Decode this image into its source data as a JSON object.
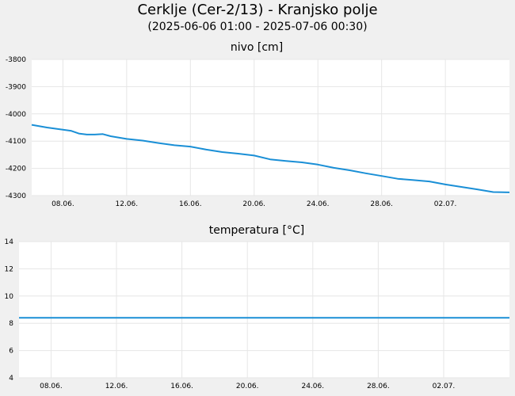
{
  "header": {
    "title": "Cerklje (Cer-2/13) - Kranjsko polje",
    "subtitle": "(2025-06-06 01:00 - 2025-07-06 00:30)"
  },
  "colors": {
    "line": "#1a8fd6",
    "plot_bg": "#ffffff",
    "grid": "#e6e6e6",
    "page_bg": "#f0f0f0"
  },
  "chart_data": [
    {
      "type": "line",
      "title": "nivo [cm]",
      "x_range": [
        "2025-06-06 01:00",
        "2025-07-06 00:30"
      ],
      "x_ticks": [
        "08.06.",
        "12.06.",
        "16.06.",
        "20.06.",
        "24.06.",
        "28.06.",
        "02.07."
      ],
      "ylim": [
        -4300,
        -3800
      ],
      "y_ticks": [
        "-3800",
        "-3900",
        "-4000",
        "-4100",
        "-4200",
        "-4300"
      ],
      "grid": true,
      "series": [
        {
          "x": [
            "2025-06-06 01:00",
            "2025-06-07 00:00",
            "2025-06-08 00:00",
            "2025-06-08 12:00",
            "2025-06-09 00:00",
            "2025-06-09 12:00",
            "2025-06-10 00:00",
            "2025-06-10 12:00",
            "2025-06-11 00:00",
            "2025-06-12 00:00",
            "2025-06-13 00:00",
            "2025-06-14 00:00",
            "2025-06-15 00:00",
            "2025-06-16 00:00",
            "2025-06-17 00:00",
            "2025-06-18 00:00",
            "2025-06-19 00:00",
            "2025-06-20 00:00",
            "2025-06-21 00:00",
            "2025-06-22 00:00",
            "2025-06-23 00:00",
            "2025-06-24 00:00",
            "2025-06-25 00:00",
            "2025-06-26 00:00",
            "2025-06-27 00:00",
            "2025-06-28 00:00",
            "2025-06-29 00:00",
            "2025-06-30 00:00",
            "2025-07-01 00:00",
            "2025-07-02 00:00",
            "2025-07-03 00:00",
            "2025-07-04 00:00",
            "2025-07-05 00:00",
            "2025-07-06 00:30"
          ],
          "y": [
            -4040,
            -4050,
            -4058,
            -4062,
            -4072,
            -4076,
            -4076,
            -4074,
            -4082,
            -4092,
            -4098,
            -4107,
            -4115,
            -4120,
            -4131,
            -4140,
            -4146,
            -4153,
            -4167,
            -4173,
            -4178,
            -4186,
            -4198,
            -4207,
            -4218,
            -4228,
            -4238,
            -4243,
            -4248,
            -4259,
            -4268,
            -4277,
            -4287,
            -4288
          ]
        }
      ]
    },
    {
      "type": "line",
      "title": "temperatura [°C]",
      "x_range": [
        "2025-06-06 01:00",
        "2025-07-06 00:30"
      ],
      "x_ticks": [
        "08.06.",
        "12.06.",
        "16.06.",
        "20.06.",
        "24.06.",
        "28.06.",
        "02.07."
      ],
      "ylim": [
        4,
        14
      ],
      "y_ticks": [
        "14",
        "12",
        "10",
        "8",
        "6",
        "4"
      ],
      "grid": true,
      "series": [
        {
          "x": [
            "2025-06-06 01:00",
            "2025-07-06 00:30"
          ],
          "y": [
            8.4,
            8.4
          ]
        }
      ]
    }
  ]
}
